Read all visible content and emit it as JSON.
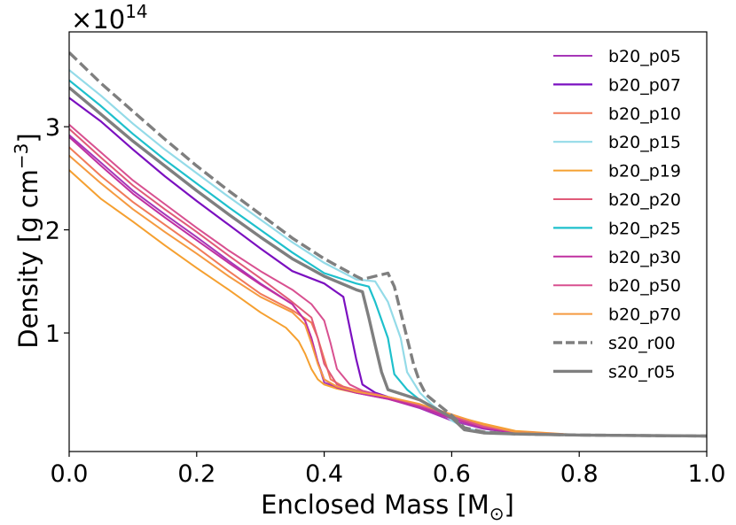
{
  "chart_data": {
    "type": "line",
    "title": "",
    "xlabel": "Enclosed Mass [M",
    "xlabel_sub": "⊙",
    "xlabel_tail": "]",
    "ylabel": "Density [g cm",
    "ylabel_sup": "−3",
    "ylabel_tail": "]",
    "y_offset_base": "×10",
    "y_offset_exp": "14",
    "xlim": [
      0.0,
      1.0
    ],
    "ylim": [
      -0.15,
      3.92
    ],
    "xticks": [
      0.0,
      0.2,
      0.4,
      0.6,
      0.8,
      1.0
    ],
    "xtick_labels": [
      "0.0",
      "0.2",
      "0.4",
      "0.6",
      "0.8",
      "1.0"
    ],
    "yticks": [
      1,
      2,
      3
    ],
    "ytick_labels": [
      "1",
      "2",
      "3"
    ],
    "legend_position": "top-right",
    "series": [
      {
        "name": "b20_p05",
        "color": "#a636b8",
        "dash": "solid",
        "width": 2,
        "x": [
          0,
          0.05,
          0.1,
          0.15,
          0.2,
          0.25,
          0.3,
          0.35,
          0.37,
          0.38,
          0.39,
          0.4,
          0.42,
          0.45,
          0.5,
          0.55,
          0.6,
          0.65,
          0.7,
          0.8,
          1.0
        ],
        "y": [
          2.92,
          2.65,
          2.38,
          2.15,
          1.93,
          1.7,
          1.48,
          1.28,
          1.12,
          0.95,
          0.72,
          0.52,
          0.47,
          0.42,
          0.36,
          0.27,
          0.15,
          0.07,
          0.03,
          0.01,
          0.0
        ]
      },
      {
        "name": "b20_p07",
        "color": "#7b10c0",
        "dash": "solid",
        "width": 2.2,
        "x": [
          0,
          0.05,
          0.1,
          0.15,
          0.2,
          0.25,
          0.3,
          0.35,
          0.4,
          0.43,
          0.44,
          0.45,
          0.46,
          0.48,
          0.5,
          0.55,
          0.6,
          0.65,
          0.7,
          0.8,
          1.0
        ],
        "y": [
          3.28,
          3.05,
          2.78,
          2.52,
          2.28,
          2.05,
          1.82,
          1.6,
          1.48,
          1.35,
          1.05,
          0.75,
          0.5,
          0.42,
          0.38,
          0.3,
          0.18,
          0.08,
          0.03,
          0.01,
          0.0
        ]
      },
      {
        "name": "b20_p10",
        "color": "#f07a5a",
        "dash": "solid",
        "width": 2,
        "x": [
          0,
          0.05,
          0.1,
          0.15,
          0.2,
          0.25,
          0.3,
          0.35,
          0.38,
          0.39,
          0.4,
          0.41,
          0.43,
          0.46,
          0.5,
          0.55,
          0.6,
          0.65,
          0.7,
          0.8,
          1.0
        ],
        "y": [
          2.8,
          2.52,
          2.27,
          2.05,
          1.83,
          1.6,
          1.38,
          1.22,
          1.1,
          0.95,
          0.75,
          0.55,
          0.48,
          0.43,
          0.37,
          0.3,
          0.2,
          0.1,
          0.04,
          0.01,
          0.0
        ]
      },
      {
        "name": "b20_p15",
        "color": "#94dbe8",
        "dash": "solid",
        "width": 2.2,
        "x": [
          0,
          0.05,
          0.1,
          0.15,
          0.2,
          0.25,
          0.3,
          0.35,
          0.4,
          0.45,
          0.48,
          0.5,
          0.52,
          0.53,
          0.55,
          0.57,
          0.6,
          0.62,
          0.65,
          0.7,
          0.8,
          1.0
        ],
        "y": [
          3.55,
          3.3,
          3.03,
          2.78,
          2.55,
          2.32,
          2.1,
          1.88,
          1.68,
          1.52,
          1.5,
          1.3,
          0.95,
          0.62,
          0.42,
          0.3,
          0.15,
          0.08,
          0.04,
          0.02,
          0.01,
          0.0
        ]
      },
      {
        "name": "b20_p19",
        "color": "#f5a030",
        "dash": "solid",
        "width": 2,
        "x": [
          0,
          0.05,
          0.1,
          0.15,
          0.2,
          0.25,
          0.3,
          0.34,
          0.36,
          0.37,
          0.38,
          0.39,
          0.4,
          0.42,
          0.45,
          0.5,
          0.55,
          0.6,
          0.65,
          0.7,
          0.8,
          1.0
        ],
        "y": [
          2.58,
          2.3,
          2.08,
          1.85,
          1.63,
          1.42,
          1.2,
          1.05,
          0.92,
          0.8,
          0.65,
          0.55,
          0.5,
          0.46,
          0.42,
          0.37,
          0.3,
          0.2,
          0.12,
          0.05,
          0.01,
          0.0
        ]
      },
      {
        "name": "b20_p20",
        "color": "#e05a78",
        "dash": "solid",
        "width": 2,
        "x": [
          0,
          0.05,
          0.1,
          0.15,
          0.2,
          0.25,
          0.3,
          0.35,
          0.38,
          0.39,
          0.4,
          0.42,
          0.45,
          0.5,
          0.55,
          0.6,
          0.65,
          0.7,
          0.8,
          1.0
        ],
        "y": [
          2.98,
          2.7,
          2.43,
          2.2,
          1.98,
          1.75,
          1.53,
          1.3,
          1.15,
          0.95,
          0.7,
          0.5,
          0.43,
          0.37,
          0.3,
          0.19,
          0.09,
          0.04,
          0.01,
          0.0
        ]
      },
      {
        "name": "b20_p25",
        "color": "#1ec0cc",
        "dash": "solid",
        "width": 2.2,
        "x": [
          0,
          0.05,
          0.1,
          0.15,
          0.2,
          0.25,
          0.3,
          0.35,
          0.4,
          0.45,
          0.47,
          0.48,
          0.5,
          0.51,
          0.53,
          0.55,
          0.6,
          0.62,
          0.65,
          0.7,
          0.8,
          1.0
        ],
        "y": [
          3.45,
          3.2,
          2.93,
          2.68,
          2.45,
          2.22,
          2.0,
          1.78,
          1.58,
          1.48,
          1.45,
          1.3,
          0.95,
          0.6,
          0.45,
          0.35,
          0.17,
          0.06,
          0.03,
          0.02,
          0.01,
          0.0
        ]
      },
      {
        "name": "b20_p30",
        "color": "#c030a0",
        "dash": "solid",
        "width": 2,
        "x": [
          0,
          0.05,
          0.1,
          0.15,
          0.2,
          0.25,
          0.3,
          0.35,
          0.37,
          0.38,
          0.39,
          0.4,
          0.42,
          0.45,
          0.5,
          0.55,
          0.6,
          0.65,
          0.7,
          0.8,
          1.0
        ],
        "y": [
          2.9,
          2.62,
          2.35,
          2.12,
          1.9,
          1.68,
          1.47,
          1.28,
          1.12,
          0.95,
          0.72,
          0.55,
          0.47,
          0.42,
          0.36,
          0.28,
          0.17,
          0.08,
          0.03,
          0.01,
          0.0
        ]
      },
      {
        "name": "b20_p50",
        "color": "#d85090",
        "dash": "solid",
        "width": 2,
        "x": [
          0,
          0.05,
          0.1,
          0.15,
          0.2,
          0.25,
          0.3,
          0.35,
          0.38,
          0.4,
          0.41,
          0.42,
          0.44,
          0.46,
          0.5,
          0.55,
          0.6,
          0.65,
          0.7,
          0.8,
          1.0
        ],
        "y": [
          3.02,
          2.75,
          2.48,
          2.25,
          2.02,
          1.8,
          1.6,
          1.42,
          1.28,
          1.12,
          0.9,
          0.65,
          0.5,
          0.44,
          0.38,
          0.3,
          0.19,
          0.09,
          0.04,
          0.01,
          0.0
        ]
      },
      {
        "name": "b20_p70",
        "color": "#f59a40",
        "dash": "solid",
        "width": 2,
        "x": [
          0,
          0.05,
          0.1,
          0.15,
          0.2,
          0.25,
          0.3,
          0.35,
          0.37,
          0.38,
          0.39,
          0.4,
          0.42,
          0.45,
          0.5,
          0.55,
          0.6,
          0.65,
          0.7,
          0.8,
          1.0
        ],
        "y": [
          2.72,
          2.45,
          2.2,
          1.98,
          1.77,
          1.55,
          1.35,
          1.2,
          1.08,
          0.9,
          0.7,
          0.55,
          0.48,
          0.43,
          0.38,
          0.31,
          0.21,
          0.11,
          0.04,
          0.01,
          0.0
        ]
      },
      {
        "name": "s20_r00",
        "color": "#7f7f7f",
        "dash": "dashed",
        "width": 3.4,
        "x": [
          0,
          0.05,
          0.1,
          0.15,
          0.2,
          0.25,
          0.3,
          0.35,
          0.4,
          0.45,
          0.46,
          0.5,
          0.51,
          0.52,
          0.53,
          0.54,
          0.55,
          0.56,
          0.6,
          0.62,
          0.65,
          0.7,
          0.8,
          1.0
        ],
        "y": [
          3.72,
          3.42,
          3.15,
          2.88,
          2.62,
          2.38,
          2.15,
          1.92,
          1.72,
          1.55,
          1.52,
          1.58,
          1.45,
          1.2,
          0.95,
          0.7,
          0.52,
          0.4,
          0.2,
          0.08,
          0.04,
          0.02,
          0.01,
          0.0
        ]
      },
      {
        "name": "s20_r05",
        "color": "#7f7f7f",
        "dash": "solid",
        "width": 3.4,
        "x": [
          0,
          0.05,
          0.1,
          0.15,
          0.2,
          0.25,
          0.3,
          0.35,
          0.4,
          0.45,
          0.46,
          0.47,
          0.48,
          0.49,
          0.5,
          0.55,
          0.6,
          0.62,
          0.65,
          0.7,
          0.8,
          1.0
        ],
        "y": [
          3.38,
          3.12,
          2.86,
          2.62,
          2.38,
          2.15,
          1.93,
          1.72,
          1.55,
          1.42,
          1.4,
          1.15,
          0.88,
          0.62,
          0.45,
          0.35,
          0.18,
          0.06,
          0.03,
          0.02,
          0.01,
          0.0
        ]
      }
    ]
  }
}
